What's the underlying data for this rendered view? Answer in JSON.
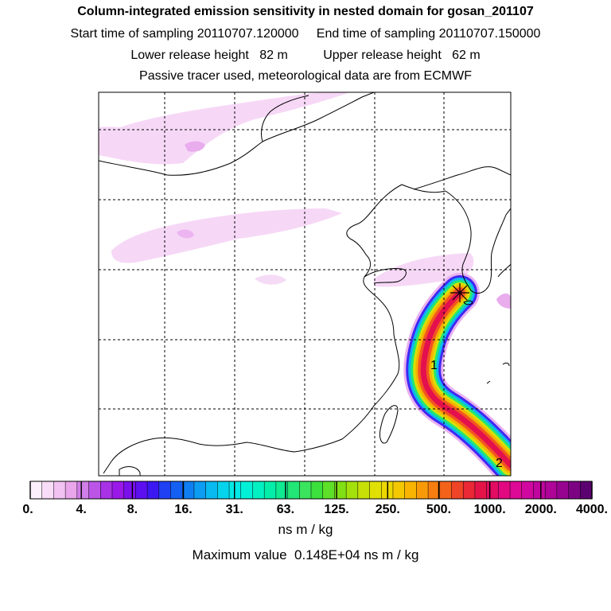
{
  "header": {
    "title": "Column-integrated emission sensitivity in nested domain for gosan_201107",
    "line1": "Start time of sampling 20110707.120000     End time of sampling 20110707.150000",
    "line2": "Lower release height   82 m          Upper release height   62 m",
    "line3": "Passive tracer used, meteorological data are from ECMWF"
  },
  "colorbar": {
    "unit": "ns m / kg",
    "max_text": "Maximum value  0.148E+04 ns m / kg",
    "tick_labels": [
      "0.",
      "4.",
      "8.",
      "16.",
      "31.",
      "63.",
      "125.",
      "250.",
      "500.",
      "1000.",
      "2000.",
      "4000."
    ],
    "colors": [
      "#fdf0fd",
      "#f8dcf8",
      "#f2c2f2",
      "#eaa6ea",
      "#d07ee8",
      "#bb55e8",
      "#a932e6",
      "#9a18e8",
      "#7a10ec",
      "#5c10f0",
      "#3c18f2",
      "#2040f4",
      "#1460f2",
      "#0f7ef2",
      "#0c9cf2",
      "#08baf0",
      "#06d4ec",
      "#04e8e6",
      "#02f0d8",
      "#02f0c2",
      "#04eeaa",
      "#10ea90",
      "#22e676",
      "#3ae45c",
      "#3ce03c",
      "#5ee028",
      "#80e014",
      "#a4e00c",
      "#c6e008",
      "#e0e004",
      "#ecd800",
      "#f4c800",
      "#f8b400",
      "#f89a08",
      "#f67e10",
      "#f4621a",
      "#f04428",
      "#ea2836",
      "#e41448",
      "#e20c62",
      "#e20880",
      "#dc0a96",
      "#d008a0",
      "#c0069e",
      "#ae0498",
      "#960490",
      "#7c0482",
      "#5c0270"
    ]
  },
  "chart_data": {
    "type": "heatmap",
    "title": "Column-integrated emission sensitivity in nested domain for gosan_201107",
    "colorbar_unit": "ns m / kg",
    "colorbar_levels": [
      0,
      4,
      8,
      16,
      31,
      63,
      125,
      250,
      500,
      1000,
      2000,
      4000
    ],
    "max_value": 1480,
    "map_labels": [
      "1",
      "2"
    ],
    "receptor": "gosan",
    "grid": true
  }
}
